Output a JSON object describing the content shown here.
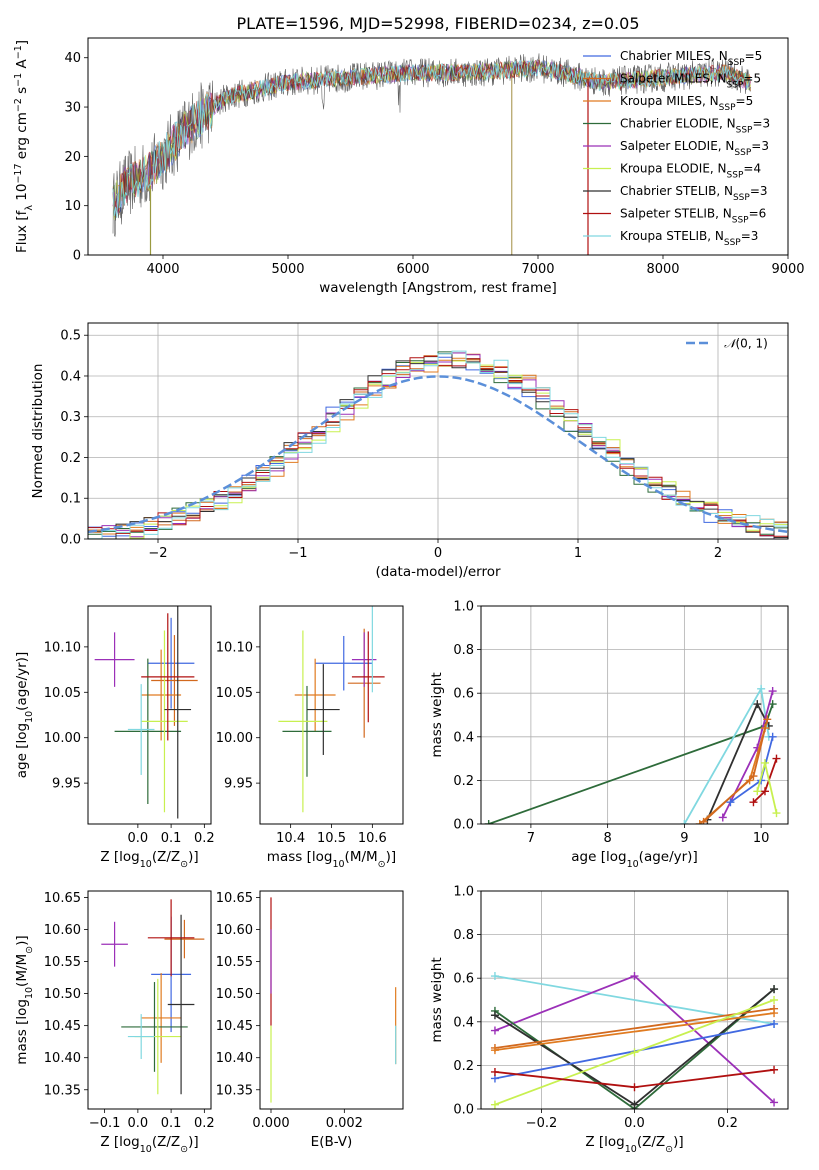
{
  "colors": {
    "Chabrier MILES": "#4169e1",
    "Salpeter MILES": "#d2691e",
    "Kroupa MILES": "#e07b20",
    "Chabrier ELODIE": "#2e6b3a",
    "Salpeter ELODIE": "#9b30b8",
    "Kroupa ELODIE": "#c8f050",
    "Chabrier STELIB": "#303030",
    "Salpeter STELIB": "#b01010",
    "Kroupa STELIB": "#80d8e0",
    "normal": "#5b8fd9"
  },
  "chart_data": [
    {
      "id": "spectrum",
      "type": "line",
      "title": "PLATE=1596, MJD=52998, FIBERID=0234, z=0.05",
      "xlabel": "wavelength [Angstrom, rest frame]",
      "ylabel": "Flux [f_λ 10^-17 erg cm^-2 s^-1 A^-1]",
      "xlim": [
        3400,
        9000
      ],
      "ylim": [
        0,
        44
      ],
      "xticks": [
        4000,
        5000,
        6000,
        7000,
        8000,
        9000
      ],
      "yticks": [
        0,
        10,
        20,
        30,
        40
      ],
      "legend_position": "upper right",
      "series": [
        {
          "name": "Chabrier MILES, N_SSP=5"
        },
        {
          "name": "Salpeter MILES, N_SSP=5"
        },
        {
          "name": "Kroupa MILES, N_SSP=5"
        },
        {
          "name": "Chabrier ELODIE, N_SSP=3"
        },
        {
          "name": "Salpeter ELODIE, N_SSP=3"
        },
        {
          "name": "Kroupa ELODIE, N_SSP=4"
        },
        {
          "name": "Chabrier STELIB, N_SSP=3"
        },
        {
          "name": "Salpeter STELIB, N_SSP=6"
        },
        {
          "name": "Kroupa STELIB, N_SSP=3"
        }
      ],
      "continuum": {
        "x": [
          3600,
          3700,
          3900,
          4000,
          4200,
          4500,
          5000,
          5500,
          6000,
          6500,
          7000,
          7200,
          7500,
          8000,
          8500,
          8700
        ],
        "y": [
          10,
          14,
          17,
          20,
          26,
          32,
          35,
          36,
          37,
          37,
          38,
          37,
          35,
          36,
          37,
          35
        ]
      }
    },
    {
      "id": "residuals",
      "type": "step",
      "xlabel": "(data-model)/error",
      "ylabel": "Normed distribution",
      "xlim": [
        -2.5,
        2.5
      ],
      "ylim": [
        0,
        0.53
      ],
      "xticks": [
        -2,
        -1,
        0,
        1,
        2
      ],
      "yticks": [
        0.0,
        0.1,
        0.2,
        0.3,
        0.4,
        0.5
      ],
      "legend": "N(0, 1)",
      "legend_position": "upper right"
    },
    {
      "id": "age_vs_Z",
      "type": "errorbar",
      "xlabel": "Z [log10(Z/Z☉)]",
      "ylabel": "age  [log10(age/yr)]",
      "xlim": [
        -0.15,
        0.22
      ],
      "ylim": [
        9.905,
        10.145
      ],
      "xticks": [
        0.0,
        0.1,
        0.2
      ],
      "yticks": [
        9.95,
        10.0,
        10.05,
        10.1
      ],
      "points": [
        {
          "model": "Chabrier MILES",
          "x": 0.1,
          "y": 10.082,
          "xerr": 0.07,
          "yerr": 0.05
        },
        {
          "model": "Salpeter MILES",
          "x": 0.11,
          "y": 10.063,
          "xerr": 0.07,
          "yerr": 0.05
        },
        {
          "model": "Kroupa MILES",
          "x": 0.07,
          "y": 10.047,
          "xerr": 0.06,
          "yerr": 0.05
        },
        {
          "model": "Chabrier ELODIE",
          "x": 0.03,
          "y": 10.007,
          "xerr": 0.1,
          "yerr": 0.08
        },
        {
          "model": "Salpeter ELODIE",
          "x": -0.07,
          "y": 10.086,
          "xerr": 0.06,
          "yerr": 0.03
        },
        {
          "model": "Kroupa ELODIE",
          "x": 0.08,
          "y": 10.018,
          "xerr": 0.07,
          "yerr": 0.1
        },
        {
          "model": "Chabrier STELIB",
          "x": 0.12,
          "y": 10.031,
          "xerr": 0.04,
          "yerr": 0.12
        },
        {
          "model": "Salpeter STELIB",
          "x": 0.09,
          "y": 10.067,
          "xerr": 0.08,
          "yerr": 0.07
        },
        {
          "model": "Kroupa STELIB",
          "x": 0.01,
          "y": 10.009,
          "xerr": 0.04,
          "yerr": 0.05
        }
      ]
    },
    {
      "id": "age_vs_mass",
      "type": "errorbar",
      "xlabel": "mass [log10(M/M☉)]",
      "ylabel": "",
      "xlim": [
        10.325,
        10.675
      ],
      "ylim": [
        9.905,
        10.145
      ],
      "xticks": [
        10.4,
        10.5,
        10.6
      ],
      "yticks": [
        9.95,
        10.0,
        10.05,
        10.1
      ],
      "points": [
        {
          "model": "Chabrier MILES",
          "x": 10.53,
          "y": 10.082,
          "xerr": 0.07,
          "yerr": 0.03
        },
        {
          "model": "Salpeter MILES",
          "x": 10.58,
          "y": 10.06,
          "xerr": 0.04,
          "yerr": 0.06
        },
        {
          "model": "Kroupa MILES",
          "x": 10.46,
          "y": 10.047,
          "xerr": 0.05,
          "yerr": 0.04
        },
        {
          "model": "Chabrier ELODIE",
          "x": 10.44,
          "y": 10.007,
          "xerr": 0.06,
          "yerr": 0.05
        },
        {
          "model": "Salpeter ELODIE",
          "x": 10.58,
          "y": 10.086,
          "xerr": 0.03,
          "yerr": 0.03
        },
        {
          "model": "Kroupa ELODIE",
          "x": 10.43,
          "y": 10.018,
          "xerr": 0.06,
          "yerr": 0.1
        },
        {
          "model": "Chabrier STELIB",
          "x": 10.48,
          "y": 10.031,
          "xerr": 0.04,
          "yerr": 0.05
        },
        {
          "model": "Salpeter STELIB",
          "x": 10.59,
          "y": 10.067,
          "xerr": 0.04,
          "yerr": 0.05
        },
        {
          "model": "Kroupa STELIB",
          "x": 10.6,
          "y": 10.1,
          "xerr": 0.0,
          "yerr": 0.05
        }
      ]
    },
    {
      "id": "weight_vs_age",
      "type": "line",
      "xlabel": "age  [log10(age/yr)]",
      "ylabel": "mass weight",
      "xlim": [
        6.35,
        10.35
      ],
      "ylim": [
        0,
        1.0
      ],
      "xticks": [
        7,
        8,
        9,
        10
      ],
      "yticks": [
        0.0,
        0.2,
        0.4,
        0.6,
        0.8,
        1.0
      ],
      "series": [
        {
          "model": "Chabrier ELODIE",
          "x": [
            6.45,
            10.05,
            10.15
          ],
          "y": [
            0.0,
            0.45,
            0.55
          ]
        },
        {
          "model": "Chabrier STELIB",
          "x": [
            9.3,
            9.95,
            10.1
          ],
          "y": [
            0.02,
            0.55,
            0.45
          ]
        },
        {
          "model": "Kroupa STELIB",
          "x": [
            9.0,
            10.0,
            10.1
          ],
          "y": [
            0.0,
            0.62,
            0.4
          ]
        },
        {
          "model": "Salpeter ELODIE",
          "x": [
            9.5,
            9.95,
            10.15
          ],
          "y": [
            0.03,
            0.35,
            0.61
          ]
        },
        {
          "model": "Kroupa MILES",
          "x": [
            9.2,
            9.85,
            10.05
          ],
          "y": [
            0.0,
            0.2,
            0.44
          ]
        },
        {
          "model": "Salpeter MILES",
          "x": [
            9.25,
            9.9,
            10.08
          ],
          "y": [
            0.01,
            0.22,
            0.48
          ]
        },
        {
          "model": "Chabrier MILES",
          "x": [
            9.6,
            10.0,
            10.15
          ],
          "y": [
            0.1,
            0.2,
            0.4
          ]
        },
        {
          "model": "Salpeter STELIB",
          "x": [
            9.9,
            10.05,
            10.2
          ],
          "y": [
            0.1,
            0.15,
            0.3
          ]
        },
        {
          "model": "Kroupa ELODIE",
          "x": [
            9.95,
            10.05,
            10.2
          ],
          "y": [
            0.15,
            0.28,
            0.05
          ]
        }
      ]
    },
    {
      "id": "mass_vs_Z",
      "type": "errorbar",
      "xlabel": "Z [log10(Z/Z☉)]",
      "ylabel": "mass [log10(M/M☉)]",
      "xlim": [
        -0.15,
        0.22
      ],
      "ylim": [
        10.32,
        10.66
      ],
      "xticks": [
        -0.1,
        0.0,
        0.1,
        0.2
      ],
      "yticks": [
        10.35,
        10.4,
        10.45,
        10.5,
        10.55,
        10.6,
        10.65
      ],
      "points": [
        {
          "model": "Chabrier MILES",
          "x": 0.1,
          "y": 10.53,
          "xerr": 0.06,
          "yerr": 0.09
        },
        {
          "model": "Salpeter MILES",
          "x": 0.14,
          "y": 10.585,
          "xerr": 0.06,
          "yerr": 0.03
        },
        {
          "model": "Kroupa MILES",
          "x": 0.07,
          "y": 10.462,
          "xerr": 0.06,
          "yerr": 0.07
        },
        {
          "model": "Chabrier ELODIE",
          "x": 0.05,
          "y": 10.448,
          "xerr": 0.1,
          "yerr": 0.07
        },
        {
          "model": "Salpeter ELODIE",
          "x": -0.07,
          "y": 10.577,
          "xerr": 0.04,
          "yerr": 0.035
        },
        {
          "model": "Kroupa ELODIE",
          "x": 0.06,
          "y": 10.433,
          "xerr": 0.07,
          "yerr": 0.09
        },
        {
          "model": "Chabrier STELIB",
          "x": 0.13,
          "y": 10.483,
          "xerr": 0.04,
          "yerr": 0.14
        },
        {
          "model": "Salpeter STELIB",
          "x": 0.1,
          "y": 10.587,
          "xerr": 0.07,
          "yerr": 0.06
        },
        {
          "model": "Kroupa STELIB",
          "x": 0.01,
          "y": 10.433,
          "xerr": 0.04,
          "yerr": 0.035
        }
      ]
    },
    {
      "id": "mass_vs_ebv",
      "type": "errorbar",
      "xlabel": "E(B-V)",
      "ylabel": "",
      "xlim": [
        -0.0003,
        0.0036
      ],
      "ylim": [
        10.32,
        10.66
      ],
      "xticks": [
        0.0,
        0.002
      ],
      "yticks": [
        10.35,
        10.4,
        10.45,
        10.5,
        10.55,
        10.6,
        10.65
      ],
      "points": [
        {
          "model": "Salpeter STELIB",
          "x": 0.0,
          "y": 10.55,
          "xerr": 0.0,
          "yerr": 0.1
        },
        {
          "model": "Salpeter ELODIE",
          "x": 0.0,
          "y": 10.55,
          "xerr": 0.0,
          "yerr": 0.05
        },
        {
          "model": "Kroupa ELODIE",
          "x": 0.0,
          "y": 10.39,
          "xerr": 0.0,
          "yerr": 0.06
        },
        {
          "model": "Kroupa MILES",
          "x": 0.0034,
          "y": 10.45,
          "xerr": 0.0,
          "yerr": 0.06
        },
        {
          "model": "Kroupa STELIB",
          "x": 0.0034,
          "y": 10.42,
          "xerr": 0.0,
          "yerr": 0.03
        }
      ]
    },
    {
      "id": "weight_vs_Z",
      "type": "line",
      "xlabel": "Z [log10(Z/Z☉)]",
      "ylabel": "mass weight",
      "xlim": [
        -0.33,
        0.33
      ],
      "ylim": [
        0,
        1.0
      ],
      "xticks": [
        -0.2,
        0.0,
        0.2
      ],
      "yticks": [
        0.0,
        0.2,
        0.4,
        0.6,
        0.8,
        1.0
      ],
      "series": [
        {
          "model": "Kroupa STELIB",
          "x": [
            -0.3,
            0.3
          ],
          "y": [
            0.61,
            0.39
          ]
        },
        {
          "model": "Salpeter ELODIE",
          "x": [
            -0.3,
            0.0,
            0.3
          ],
          "y": [
            0.36,
            0.61,
            0.03
          ]
        },
        {
          "model": "Chabrier ELODIE",
          "x": [
            -0.3,
            0.0,
            0.3
          ],
          "y": [
            0.45,
            0.0,
            0.55
          ]
        },
        {
          "model": "Chabrier STELIB",
          "x": [
            -0.3,
            0.0,
            0.3
          ],
          "y": [
            0.43,
            0.02,
            0.55
          ]
        },
        {
          "model": "Salpeter MILES",
          "x": [
            -0.3,
            0.3
          ],
          "y": [
            0.28,
            0.46
          ]
        },
        {
          "model": "Kroupa MILES",
          "x": [
            -0.3,
            0.3
          ],
          "y": [
            0.27,
            0.44
          ]
        },
        {
          "model": "Chabrier MILES",
          "x": [
            -0.3,
            0.3
          ],
          "y": [
            0.14,
            0.39
          ]
        },
        {
          "model": "Kroupa ELODIE",
          "x": [
            -0.3,
            0.0,
            0.3
          ],
          "y": [
            0.02,
            0.26,
            0.5
          ]
        },
        {
          "model": "Salpeter STELIB",
          "x": [
            -0.3,
            0.0,
            0.3
          ],
          "y": [
            0.17,
            0.1,
            0.18
          ]
        }
      ]
    }
  ]
}
